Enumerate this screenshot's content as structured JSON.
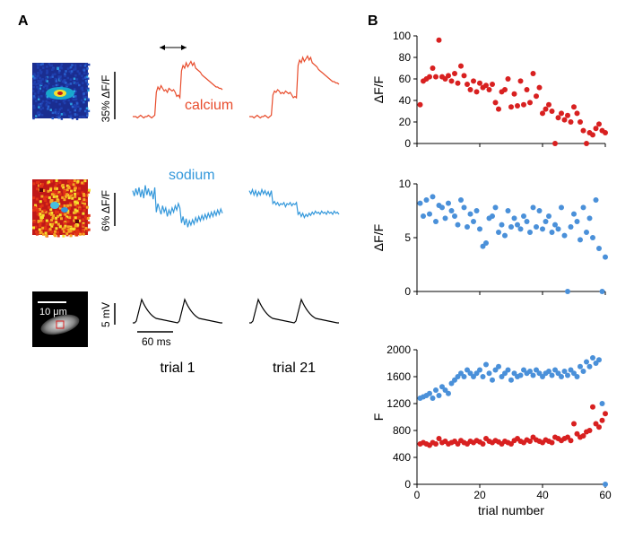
{
  "panelA": {
    "label": "A",
    "calcium": {
      "label": "calcium",
      "color": "#e84c2c",
      "scalebar_label": "35% ΔF/F",
      "trial1_trace": [
        0,
        0,
        0,
        -1,
        0,
        1,
        0,
        -1,
        0,
        0,
        1,
        0,
        -1,
        0,
        1,
        18,
        22,
        20,
        23,
        21,
        19,
        20,
        18,
        21,
        20,
        19,
        20,
        18,
        15,
        16,
        14,
        34,
        38,
        36,
        40,
        37,
        39,
        41,
        38,
        40,
        36,
        35,
        34,
        33,
        31,
        30,
        29,
        28,
        27,
        26,
        25,
        24,
        23,
        22,
        22,
        21,
        21,
        20
      ],
      "trial21_trace": [
        0,
        0,
        0,
        -1,
        0,
        1,
        0,
        -1,
        0,
        0,
        1,
        0,
        -1,
        0,
        1,
        16,
        19,
        18,
        20,
        19,
        17,
        18,
        17,
        19,
        18,
        17,
        18,
        16,
        14,
        15,
        14,
        38,
        42,
        40,
        44,
        41,
        43,
        45,
        42,
        44,
        40,
        39,
        38,
        37,
        35,
        34,
        33,
        32,
        31,
        30,
        29,
        28,
        27,
        26,
        26,
        25,
        25,
        24
      ],
      "heatmap_bg": "#1a2d90",
      "heatmap_mid": "#18b5d3",
      "heatmap_hot": "#f5e02d",
      "heatmap_core": "#c01818"
    },
    "sodium": {
      "label": "sodium",
      "color": "#3498db",
      "scalebar_label": "6% ΔF/F",
      "trial1_trace": [
        2,
        -3,
        4,
        -2,
        5,
        -4,
        3,
        -5,
        7,
        -2,
        4,
        -3,
        2,
        -6,
        5,
        -18,
        -10,
        -15,
        -20,
        -12,
        -18,
        -14,
        -22,
        -16,
        -20,
        -14,
        -18,
        -12,
        -16,
        -10,
        -14,
        -28,
        -22,
        -30,
        -24,
        -32,
        -26,
        -30,
        -25,
        -29,
        -23,
        -27,
        -22,
        -26,
        -21,
        -25,
        -20,
        -24,
        -19,
        -23,
        -18,
        -22,
        -17,
        -21,
        -16,
        -20,
        -15,
        -19
      ],
      "trial21_trace": [
        2,
        -1,
        3,
        -2,
        2,
        -3,
        1,
        -2,
        3,
        -1,
        2,
        -2,
        1,
        -3,
        2,
        -10,
        -8,
        -11,
        -9,
        -12,
        -10,
        -11,
        -9,
        -13,
        -10,
        -11,
        -9,
        -12,
        -10,
        -11,
        -9,
        -20,
        -18,
        -22,
        -19,
        -23,
        -20,
        -22,
        -19,
        -21,
        -18,
        -20,
        -17,
        -19,
        -18,
        -20,
        -17,
        -19,
        -18,
        -20,
        -17,
        -19,
        -18,
        -20,
        -17,
        -19,
        -18,
        -20
      ],
      "heatmap_bg": "#c01818",
      "heatmap_mid": "#f5a623",
      "heatmap_hot": "#f5e02d"
    },
    "morphology_scalebar": "10 μm",
    "voltage": {
      "scalebar_label": "5 mV",
      "time_label": "60 ms",
      "color": "#000000"
    },
    "trial_labels": [
      "trial 1",
      "trial 21"
    ],
    "measure_arrow_color": "#000000"
  },
  "panelB": {
    "label": "B",
    "xlabel": "trial number",
    "xlim": [
      0,
      60
    ],
    "xticks": [
      0,
      20,
      40,
      60
    ],
    "chart1": {
      "ylabel": "ΔF/F",
      "ylim": [
        0,
        100
      ],
      "yticks": [
        0,
        20,
        40,
        60,
        80,
        100
      ],
      "color": "#d82020",
      "points": [
        [
          1,
          36
        ],
        [
          2,
          58
        ],
        [
          3,
          60
        ],
        [
          4,
          62
        ],
        [
          5,
          70
        ],
        [
          6,
          62
        ],
        [
          7,
          96
        ],
        [
          8,
          62
        ],
        [
          9,
          60
        ],
        [
          10,
          63
        ],
        [
          11,
          58
        ],
        [
          12,
          65
        ],
        [
          13,
          56
        ],
        [
          14,
          72
        ],
        [
          15,
          63
        ],
        [
          16,
          55
        ],
        [
          17,
          50
        ],
        [
          18,
          58
        ],
        [
          19,
          48
        ],
        [
          20,
          56
        ],
        [
          21,
          52
        ],
        [
          22,
          54
        ],
        [
          23,
          50
        ],
        [
          24,
          55
        ],
        [
          25,
          38
        ],
        [
          26,
          32
        ],
        [
          27,
          48
        ],
        [
          28,
          50
        ],
        [
          29,
          60
        ],
        [
          30,
          34
        ],
        [
          31,
          46
        ],
        [
          32,
          35
        ],
        [
          33,
          58
        ],
        [
          34,
          36
        ],
        [
          35,
          50
        ],
        [
          36,
          38
        ],
        [
          37,
          65
        ],
        [
          38,
          44
        ],
        [
          39,
          52
        ],
        [
          40,
          28
        ],
        [
          41,
          32
        ],
        [
          42,
          36
        ],
        [
          43,
          30
        ],
        [
          44,
          0
        ],
        [
          45,
          24
        ],
        [
          46,
          28
        ],
        [
          47,
          22
        ],
        [
          48,
          26
        ],
        [
          49,
          20
        ],
        [
          50,
          34
        ],
        [
          51,
          28
        ],
        [
          52,
          20
        ],
        [
          53,
          12
        ],
        [
          54,
          0
        ],
        [
          55,
          10
        ],
        [
          56,
          8
        ],
        [
          57,
          14
        ],
        [
          58,
          18
        ],
        [
          59,
          12
        ],
        [
          60,
          10
        ]
      ]
    },
    "chart2": {
      "ylabel": "ΔF/F",
      "ylim": [
        0,
        10
      ],
      "yticks": [
        0,
        5,
        10
      ],
      "color": "#4a90d9",
      "points": [
        [
          1,
          8.2
        ],
        [
          2,
          7.0
        ],
        [
          3,
          8.5
        ],
        [
          4,
          7.2
        ],
        [
          5,
          8.8
        ],
        [
          6,
          6.5
        ],
        [
          7,
          8.0
        ],
        [
          8,
          7.8
        ],
        [
          9,
          6.8
        ],
        [
          10,
          8.2
        ],
        [
          11,
          7.5
        ],
        [
          12,
          7.0
        ],
        [
          13,
          6.2
        ],
        [
          14,
          8.5
        ],
        [
          15,
          7.8
        ],
        [
          16,
          6.0
        ],
        [
          17,
          7.2
        ],
        [
          18,
          6.5
        ],
        [
          19,
          7.5
        ],
        [
          20,
          5.8
        ],
        [
          21,
          4.2
        ],
        [
          22,
          4.5
        ],
        [
          23,
          6.8
        ],
        [
          24,
          7.0
        ],
        [
          25,
          7.8
        ],
        [
          26,
          5.5
        ],
        [
          27,
          6.2
        ],
        [
          28,
          5.2
        ],
        [
          29,
          7.5
        ],
        [
          30,
          6.0
        ],
        [
          31,
          6.8
        ],
        [
          32,
          6.2
        ],
        [
          33,
          5.8
        ],
        [
          34,
          7.0
        ],
        [
          35,
          6.5
        ],
        [
          36,
          5.5
        ],
        [
          37,
          7.8
        ],
        [
          38,
          6.0
        ],
        [
          39,
          7.5
        ],
        [
          40,
          5.8
        ],
        [
          41,
          6.5
        ],
        [
          42,
          7.0
        ],
        [
          43,
          5.5
        ],
        [
          44,
          6.2
        ],
        [
          45,
          5.8
        ],
        [
          46,
          7.8
        ],
        [
          47,
          5.2
        ],
        [
          48,
          0
        ],
        [
          49,
          6.0
        ],
        [
          50,
          7.2
        ],
        [
          51,
          6.5
        ],
        [
          52,
          4.8
        ],
        [
          53,
          7.8
        ],
        [
          54,
          5.5
        ],
        [
          55,
          6.8
        ],
        [
          56,
          5.0
        ],
        [
          57,
          8.5
        ],
        [
          58,
          4.0
        ],
        [
          59,
          0
        ],
        [
          60,
          3.2
        ]
      ]
    },
    "chart3": {
      "ylabel": "F",
      "ylim": [
        0,
        2000
      ],
      "yticks": [
        0,
        400,
        800,
        1200,
        1600,
        2000
      ],
      "series": [
        {
          "color": "#4a90d9",
          "points": [
            [
              1,
              1280
            ],
            [
              2,
              1300
            ],
            [
              3,
              1320
            ],
            [
              4,
              1350
            ],
            [
              5,
              1280
            ],
            [
              6,
              1400
            ],
            [
              7,
              1320
            ],
            [
              8,
              1450
            ],
            [
              9,
              1400
            ],
            [
              10,
              1350
            ],
            [
              11,
              1500
            ],
            [
              12,
              1550
            ],
            [
              13,
              1600
            ],
            [
              14,
              1650
            ],
            [
              15,
              1600
            ],
            [
              16,
              1700
            ],
            [
              17,
              1650
            ],
            [
              18,
              1600
            ],
            [
              19,
              1650
            ],
            [
              20,
              1700
            ],
            [
              21,
              1600
            ],
            [
              22,
              1780
            ],
            [
              23,
              1650
            ],
            [
              24,
              1550
            ],
            [
              25,
              1700
            ],
            [
              26,
              1750
            ],
            [
              27,
              1600
            ],
            [
              28,
              1650
            ],
            [
              29,
              1700
            ],
            [
              30,
              1550
            ],
            [
              31,
              1650
            ],
            [
              32,
              1600
            ],
            [
              33,
              1620
            ],
            [
              34,
              1700
            ],
            [
              35,
              1650
            ],
            [
              36,
              1680
            ],
            [
              37,
              1620
            ],
            [
              38,
              1700
            ],
            [
              39,
              1650
            ],
            [
              40,
              1600
            ],
            [
              41,
              1650
            ],
            [
              42,
              1680
            ],
            [
              43,
              1620
            ],
            [
              44,
              1700
            ],
            [
              45,
              1650
            ],
            [
              46,
              1600
            ],
            [
              47,
              1680
            ],
            [
              48,
              1620
            ],
            [
              49,
              1700
            ],
            [
              50,
              1650
            ],
            [
              51,
              1600
            ],
            [
              52,
              1750
            ],
            [
              53,
              1680
            ],
            [
              54,
              1820
            ],
            [
              55,
              1750
            ],
            [
              56,
              1880
            ],
            [
              57,
              1800
            ],
            [
              58,
              1850
            ],
            [
              59,
              1200
            ],
            [
              60,
              0
            ]
          ]
        },
        {
          "color": "#d82020",
          "points": [
            [
              1,
              600
            ],
            [
              2,
              620
            ],
            [
              3,
              600
            ],
            [
              4,
              580
            ],
            [
              5,
              620
            ],
            [
              6,
              600
            ],
            [
              7,
              680
            ],
            [
              8,
              620
            ],
            [
              9,
              640
            ],
            [
              10,
              600
            ],
            [
              11,
              620
            ],
            [
              12,
              640
            ],
            [
              13,
              600
            ],
            [
              14,
              650
            ],
            [
              15,
              620
            ],
            [
              16,
              600
            ],
            [
              17,
              640
            ],
            [
              18,
              620
            ],
            [
              19,
              650
            ],
            [
              20,
              630
            ],
            [
              21,
              600
            ],
            [
              22,
              680
            ],
            [
              23,
              640
            ],
            [
              24,
              620
            ],
            [
              25,
              650
            ],
            [
              26,
              630
            ],
            [
              27,
              600
            ],
            [
              28,
              640
            ],
            [
              29,
              620
            ],
            [
              30,
              600
            ],
            [
              31,
              650
            ],
            [
              32,
              680
            ],
            [
              33,
              640
            ],
            [
              34,
              620
            ],
            [
              35,
              660
            ],
            [
              36,
              640
            ],
            [
              37,
              700
            ],
            [
              38,
              660
            ],
            [
              39,
              640
            ],
            [
              40,
              620
            ],
            [
              41,
              660
            ],
            [
              42,
              640
            ],
            [
              43,
              620
            ],
            [
              44,
              700
            ],
            [
              45,
              680
            ],
            [
              46,
              650
            ],
            [
              47,
              680
            ],
            [
              48,
              700
            ],
            [
              49,
              650
            ],
            [
              50,
              900
            ],
            [
              51,
              750
            ],
            [
              52,
              700
            ],
            [
              53,
              720
            ],
            [
              54,
              780
            ],
            [
              55,
              800
            ],
            [
              56,
              1150
            ],
            [
              57,
              900
            ],
            [
              58,
              850
            ],
            [
              59,
              950
            ],
            [
              60,
              1050
            ]
          ]
        }
      ]
    }
  }
}
